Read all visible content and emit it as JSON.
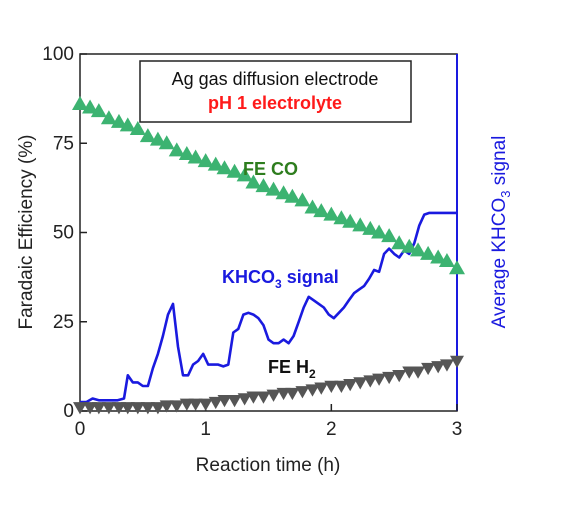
{
  "chart_data": {
    "type": "line",
    "xlabel": "Reaction time (h)",
    "ylabel": "Faradaic Efficiency (%)",
    "y2label_main": "Average KHCO",
    "y2label_sub": "3",
    "y2label_tail": " signal",
    "xlim": [
      0,
      3
    ],
    "ylim": [
      0,
      100
    ],
    "xticks": [
      "0",
      "1",
      "2",
      "3"
    ],
    "yticks": [
      "0",
      "25",
      "50",
      "75",
      "100"
    ],
    "box_line1": "Ag gas diffusion electrode",
    "box_line2": "pH 1 electrolyte",
    "annotations": {
      "fe_co": "FE CO",
      "khco3_main": "KHCO",
      "khco3_sub": "3",
      "khco3_tail": " signal",
      "fe_h2_main": "FE H",
      "fe_h2_sub": "2"
    },
    "colors": {
      "fe_co": "#3cb371",
      "fe_co_label": "#2e7d1e",
      "fe_h2": "#555555",
      "khco3": "#1a1adf",
      "box_line2": "#ff1a1a",
      "right_axis": "#1a1adf"
    },
    "series": [
      {
        "key": "fe_co",
        "marker": "triangle-up",
        "x": [
          0.0,
          0.08,
          0.15,
          0.23,
          0.31,
          0.38,
          0.46,
          0.54,
          0.62,
          0.69,
          0.77,
          0.85,
          0.92,
          1.0,
          1.08,
          1.15,
          1.23,
          1.31,
          1.38,
          1.46,
          1.54,
          1.62,
          1.69,
          1.77,
          1.85,
          1.92,
          2.0,
          2.08,
          2.15,
          2.23,
          2.31,
          2.38,
          2.46,
          2.54,
          2.62,
          2.69,
          2.77,
          2.85,
          2.92,
          3.0
        ],
        "values": [
          86,
          85,
          84,
          82,
          81,
          80,
          79,
          77,
          76,
          75,
          73,
          72,
          71,
          70,
          69,
          68,
          67,
          66,
          64,
          63,
          62,
          61,
          60,
          59,
          57,
          56,
          55,
          54,
          53,
          52,
          51,
          50,
          49,
          47,
          46,
          45,
          44,
          43,
          42,
          40
        ]
      },
      {
        "key": "fe_h2",
        "marker": "triangle-down",
        "x": [
          0.0,
          0.08,
          0.15,
          0.23,
          0.31,
          0.38,
          0.46,
          0.54,
          0.62,
          0.69,
          0.77,
          0.85,
          0.92,
          1.0,
          1.08,
          1.15,
          1.23,
          1.31,
          1.38,
          1.46,
          1.54,
          1.62,
          1.69,
          1.77,
          1.85,
          1.92,
          2.0,
          2.08,
          2.15,
          2.23,
          2.31,
          2.38,
          2.46,
          2.54,
          2.62,
          2.69,
          2.77,
          2.85,
          2.92,
          3.0
        ],
        "values": [
          1,
          1,
          1,
          1,
          1,
          1,
          1,
          1,
          1,
          1.5,
          1.5,
          2,
          2,
          2,
          2.5,
          3,
          3,
          3.5,
          4,
          4,
          4.5,
          5,
          5,
          5.5,
          6,
          6.5,
          7,
          7,
          7.5,
          8,
          8.5,
          9,
          9.5,
          10,
          11,
          11,
          12,
          12.5,
          13,
          14
        ]
      },
      {
        "key": "khco3",
        "marker": "line",
        "x": [
          0.0,
          0.05,
          0.1,
          0.15,
          0.2,
          0.25,
          0.3,
          0.35,
          0.38,
          0.42,
          0.46,
          0.5,
          0.54,
          0.58,
          0.62,
          0.66,
          0.7,
          0.74,
          0.78,
          0.82,
          0.86,
          0.9,
          0.94,
          0.98,
          1.02,
          1.06,
          1.1,
          1.14,
          1.18,
          1.22,
          1.26,
          1.3,
          1.34,
          1.38,
          1.42,
          1.46,
          1.5,
          1.54,
          1.58,
          1.62,
          1.66,
          1.7,
          1.74,
          1.78,
          1.82,
          1.86,
          1.9,
          1.94,
          1.98,
          2.02,
          2.06,
          2.1,
          2.14,
          2.18,
          2.22,
          2.26,
          2.3,
          2.34,
          2.38,
          2.42,
          2.46,
          2.5,
          2.54,
          2.58,
          2.62,
          2.66,
          2.7,
          2.74,
          2.78,
          2.82,
          2.86,
          2.9,
          2.94,
          2.98,
          3.0
        ],
        "values": [
          2,
          2,
          3,
          2.5,
          2.5,
          2.5,
          2.5,
          3,
          10,
          8,
          8,
          7,
          7,
          12,
          16,
          21,
          27,
          30,
          18,
          10,
          10,
          13,
          14,
          16,
          13,
          13,
          13,
          12,
          13,
          22,
          23,
          27,
          28,
          27,
          27,
          25,
          20,
          19,
          19,
          20,
          19,
          21,
          27,
          31,
          32,
          30,
          29,
          29,
          27,
          26,
          28,
          30,
          31,
          34,
          34,
          36,
          38,
          40,
          44,
          45,
          40,
          44,
          43,
          46,
          45,
          49,
          55,
          56,
          56,
          56,
          56,
          56,
          56,
          56,
          56
        ]
      }
    ],
    "khco3_y": [
      2.5,
      2.5,
      3.5,
      3,
      3,
      3,
      3,
      3.5,
      10,
      8,
      8,
      7,
      7,
      12,
      16,
      21,
      27,
      30,
      18,
      10,
      10,
      13,
      14,
      16,
      13,
      13,
      13,
      12.5,
      13,
      22,
      23,
      27,
      27.5,
      27,
      26,
      24,
      20,
      19,
      19,
      20,
      19,
      21,
      25,
      29,
      32,
      31,
      30,
      29,
      27,
      26,
      27.5,
      29,
      31,
      33,
      34,
      35,
      37,
      39.5,
      39,
      44,
      45.5,
      44,
      43,
      45,
      44,
      47,
      52,
      55,
      55.5,
      55.5,
      55.5,
      55.5,
      55.5,
      55.5,
      55.5
    ]
  }
}
